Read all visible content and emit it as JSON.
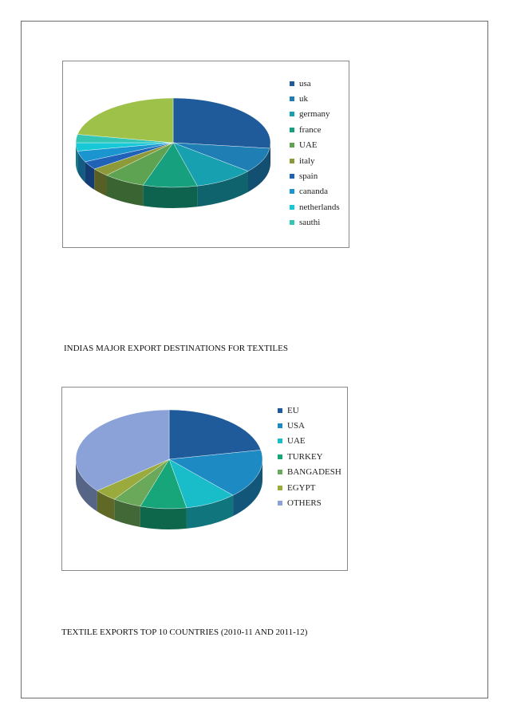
{
  "captions": {
    "first": "INDIAS MAJOR EXPORT DESTINATIONS FOR TEXTILES",
    "second": "TEXTILE EXPORTS TOP  10 COUNTRIES (2010-11 AND 2011-12)"
  },
  "chart_data": [
    {
      "type": "pie",
      "style": "3d-exploded",
      "title": "",
      "legend_position": "right",
      "slices": [
        {
          "label": "usa",
          "value": 27,
          "color": "#1f5a9a"
        },
        {
          "label": "uk",
          "value": 9,
          "color": "#1f7fb5"
        },
        {
          "label": "germany",
          "value": 10,
          "color": "#16a0b0"
        },
        {
          "label": "france",
          "value": 9,
          "color": "#17a07d"
        },
        {
          "label": "UAE",
          "value": 7,
          "color": "#5da352"
        },
        {
          "label": "italy",
          "value": 3,
          "color": "#8c9a3a"
        },
        {
          "label": "spain",
          "value": 3,
          "color": "#1f62b8"
        },
        {
          "label": "cananda",
          "value": 4,
          "color": "#1b95cf"
        },
        {
          "label": "netherlands",
          "value": 3,
          "color": "#17c9d6"
        },
        {
          "label": "sauthi",
          "value": 3,
          "color": "#33c6b5"
        },
        {
          "label": "",
          "value": 22,
          "color": "#9ec14a"
        }
      ]
    },
    {
      "type": "pie",
      "style": "3d-exploded",
      "title": "",
      "legend_position": "right",
      "slices": [
        {
          "label": "EU",
          "value": 22,
          "color": "#1f5a9a"
        },
        {
          "label": "USA",
          "value": 16,
          "color": "#1d8ac4"
        },
        {
          "label": "UAE",
          "value": 9,
          "color": "#19bdc9"
        },
        {
          "label": "TURKEY",
          "value": 8,
          "color": "#17a679"
        },
        {
          "label": "BANGADESH",
          "value": 5,
          "color": "#6aa85a"
        },
        {
          "label": "EGYPT",
          "value": 4,
          "color": "#9aaa3c"
        },
        {
          "label": "OTHERS",
          "value": 36,
          "color": "#8aa2d8"
        }
      ]
    }
  ]
}
